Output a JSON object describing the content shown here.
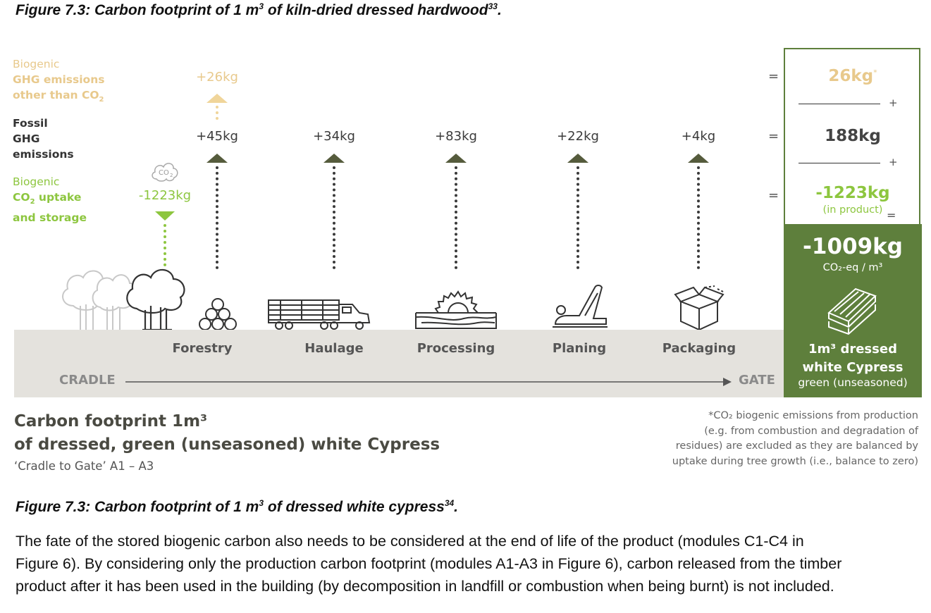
{
  "top_caption": {
    "text": "Figure 7.3: Carbon footprint of 1 m",
    "sup1": "3",
    "text2": " of kiln-dried dressed hardwood",
    "sup2": "33",
    "end": "."
  },
  "legend": {
    "nonco2": {
      "line1": "Biogenic",
      "line2": "GHG emissions",
      "line3": "other than CO",
      "sub": "2"
    },
    "fossil": {
      "line1": "Fossil",
      "line2": "GHG",
      "line3": "emissions"
    },
    "bio": {
      "line1": "Biogenic",
      "line2": "CO",
      "line2b": " uptake",
      "sub": "2",
      "line3": "and storage"
    }
  },
  "values": {
    "nonco2_forestry": "+26kg",
    "forestry": "+45kg",
    "haulage": "+34kg",
    "processing": "+83kg",
    "planing": "+22kg",
    "packaging": "+4kg",
    "uptake": "-1223kg",
    "co2_cloud": "CO",
    "co2_cloud_sub": "2"
  },
  "stages": [
    "Forestry",
    "Haulage",
    "Processing",
    "Planing",
    "Packaging"
  ],
  "axis": {
    "start": "CRADLE",
    "end": "GATE"
  },
  "summary": {
    "nonco2": "26kg",
    "nonco2_star": "*",
    "fossil": "188kg",
    "uptake": "-1223kg",
    "uptake_note": "(in product)",
    "plus": "+",
    "equals": "=",
    "total": "-1009kg",
    "unit": "CO₂-eq / m³",
    "product_line1": "1m³ dressed",
    "product_line2": "white Cypress",
    "product_line3": "green (unseasoned)"
  },
  "subtitle": {
    "line1": "Carbon footprint 1m³",
    "line2": "of dressed, green (unseasoned) white Cypress",
    "line3": "‘Cradle to Gate’ A1 – A3"
  },
  "note": {
    "line1": "*CO₂ biogenic emissions from production",
    "line2": "(e.g. from combustion and degradation of",
    "line3": "residues) are excluded as they are balanced by",
    "line4": "uptake during tree growth (i.e., balance to zero)"
  },
  "bottom_caption": {
    "text": "Figure 7.3: Carbon footprint of 1 m",
    "sup1": "3",
    "text2": " of dressed white cypress",
    "sup2": "34",
    "end": "."
  },
  "body": {
    "line1": "The fate of the stored biogenic carbon also needs to be considered at the end of life of the product (modules C1-C4 in",
    "line2": "Figure 6). By considering only the production carbon footprint (modules A1-A3 in Figure 6), carbon released from the timber",
    "line3": "product after it has been used in the building (by decomposition in landfill or combustion when being burnt) is not included."
  },
  "colors": {
    "panel_green": "#5e7f3c",
    "tan": "#e8c98c",
    "lime": "#8dc63f",
    "band": "#e4e2dd"
  }
}
